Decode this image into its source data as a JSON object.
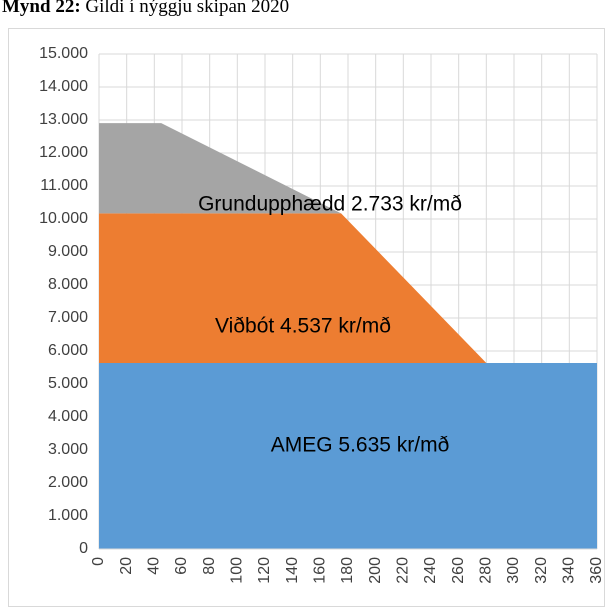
{
  "chart_data": {
    "type": "stacked_area",
    "title_label": "Mynd 22:",
    "title": "Gildi í nýggju skipan 2020",
    "x": [
      0,
      45,
      175,
      280,
      360
    ],
    "series": [
      {
        "name": "AMEG 5.635 kr/mð",
        "color": "#5b9bd5",
        "values": [
          5635,
          5635,
          5635,
          5635,
          5635
        ]
      },
      {
        "name": "Viðbót 4.537 kr/mð",
        "color": "#ed7d31",
        "values": [
          4537,
          4537,
          4537,
          0,
          0
        ]
      },
      {
        "name": "Grundupphædd 2.733 kr/mð",
        "color": "#a5a5a5",
        "values": [
          2733,
          2733,
          0,
          0,
          0
        ]
      }
    ],
    "xlim": [
      0,
      360
    ],
    "xticks": [
      0,
      20,
      40,
      60,
      80,
      100,
      120,
      140,
      160,
      180,
      200,
      220,
      240,
      260,
      280,
      300,
      320,
      340,
      360
    ],
    "ylim": [
      0,
      15000
    ],
    "yticks": [
      0,
      {
        "value": 1000,
        "label": "1.000"
      },
      {
        "value": 2000,
        "label": "2.000"
      },
      {
        "value": 3000,
        "label": "3.000"
      },
      {
        "value": 4000,
        "label": "4.000"
      },
      {
        "value": 5000,
        "label": "5.000"
      },
      {
        "value": 6000,
        "label": "6.000"
      },
      {
        "value": 7000,
        "label": "7.000"
      },
      {
        "value": 8000,
        "label": "8.000"
      },
      {
        "value": 9000,
        "label": "9.000"
      },
      {
        "value": 10000,
        "label": "10.000"
      },
      {
        "value": 11000,
        "label": "11.000"
      },
      {
        "value": 12000,
        "label": "12.000"
      },
      {
        "value": 13000,
        "label": "13.000"
      },
      {
        "value": 14000,
        "label": "14.000"
      },
      {
        "value": 15000,
        "label": "15.000"
      }
    ],
    "grid": true
  }
}
